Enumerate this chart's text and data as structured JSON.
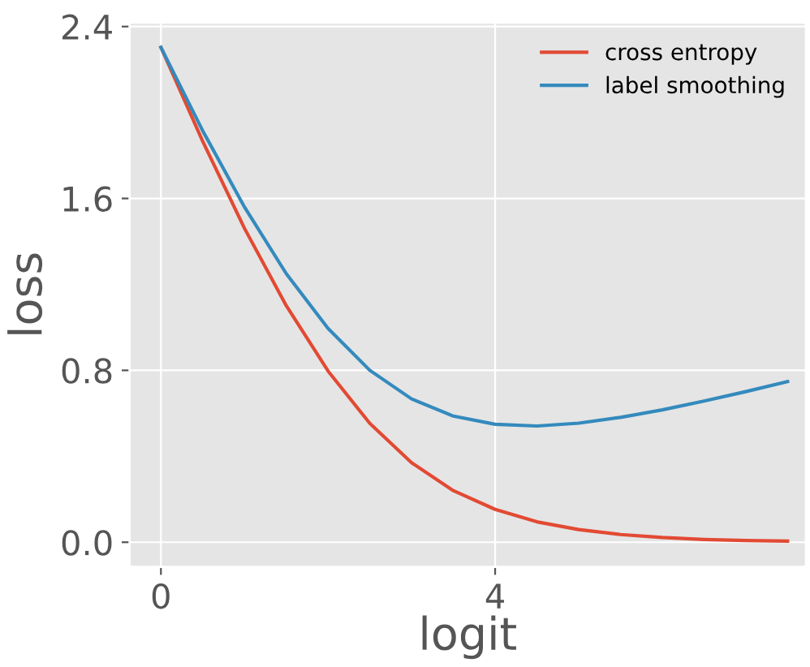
{
  "chart_data": {
    "type": "line",
    "xlabel": "logit",
    "ylabel": "loss",
    "x": [
      0,
      0.5,
      1,
      1.5,
      2,
      2.5,
      3,
      3.5,
      4,
      4.5,
      5,
      5.5,
      6,
      6.5,
      7,
      7.5
    ],
    "series": [
      {
        "name": "cross entropy",
        "color": "#e24a33",
        "values": [
          2.303,
          1.866,
          1.461,
          1.101,
          0.797,
          0.553,
          0.37,
          0.24,
          0.153,
          0.095,
          0.059,
          0.036,
          0.022,
          0.013,
          0.008,
          0.005
        ]
      },
      {
        "name": "label smoothing",
        "color": "#348abd",
        "values": [
          2.303,
          1.915,
          1.56,
          1.25,
          0.995,
          0.8,
          0.667,
          0.587,
          0.549,
          0.541,
          0.554,
          0.581,
          0.616,
          0.657,
          0.701,
          0.748
        ]
      }
    ],
    "xlim": [
      -0.375,
      7.72
    ],
    "ylim": [
      -0.115,
      2.418
    ],
    "xticks": [
      0,
      4
    ],
    "yticks": [
      {
        "value": 0,
        "label": "0.0"
      },
      0.8,
      1.6,
      2.4
    ],
    "grid": true,
    "legend": "top right",
    "marker": "none",
    "line_style": "solid"
  }
}
